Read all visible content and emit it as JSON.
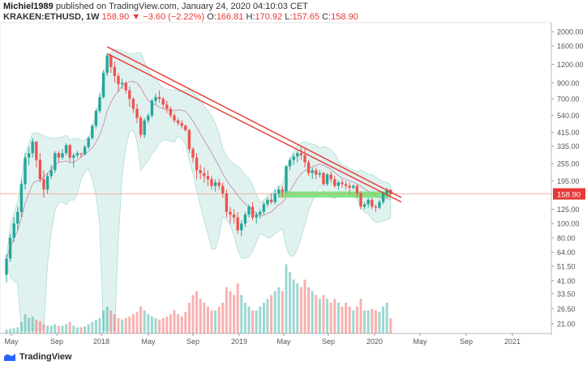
{
  "header": {
    "author": "Michiel1989",
    "published_text": "published on TradingView.com, January 24, 2020 04:10:03 CET",
    "symbol": "KRAKEN:ETHUSD, 1W",
    "last": "158.90",
    "change": "▼ −3.60 (−2.22%)",
    "o_label": "O:",
    "o_val": "166.81",
    "h_label": "H:",
    "h_val": "170.92",
    "l_label": "L:",
    "l_val": "157.65",
    "c_label": "C:",
    "c_val": "158.90"
  },
  "footer": {
    "brand": "TradingView"
  },
  "colors": {
    "up": "#26a69a",
    "down": "#ef5350",
    "band_fill": "#d9efec",
    "band_line": "#9fd3c7",
    "trend": "#e53935",
    "support": "#66e266",
    "ma": "#c48fb0"
  },
  "chart_data": {
    "type": "candlestick",
    "y_scale": "log",
    "ylim": [
      18,
      2300
    ],
    "y_ticks": [
      "2000.00",
      "1600.00",
      "1200.00",
      "900.00",
      "700.00",
      "540.00",
      "415.00",
      "335.00",
      "255.00",
      "195.00",
      "158.90",
      "125.00",
      "100.00",
      "80.00",
      "64.00",
      "51.50",
      "41.00",
      "33.50",
      "26.50",
      "21.00"
    ],
    "last_price": "158.90",
    "x_ticks": [
      "May",
      "Sep",
      "2018",
      "May",
      "Sep",
      "2019",
      "May",
      "Sep",
      "2020",
      "May",
      "Sep",
      "2021"
    ],
    "candles_ohlc": [
      [
        45,
        62,
        40,
        58
      ],
      [
        58,
        85,
        55,
        80
      ],
      [
        80,
        110,
        75,
        100
      ],
      [
        100,
        130,
        90,
        120
      ],
      [
        120,
        200,
        110,
        185
      ],
      [
        185,
        300,
        170,
        280
      ],
      [
        280,
        330,
        250,
        300
      ],
      [
        300,
        380,
        280,
        360
      ],
      [
        360,
        320,
        240,
        270
      ],
      [
        270,
        300,
        190,
        200
      ],
      [
        200,
        230,
        150,
        170
      ],
      [
        170,
        220,
        160,
        210
      ],
      [
        210,
        250,
        200,
        230
      ],
      [
        230,
        310,
        220,
        300
      ],
      [
        300,
        310,
        260,
        280
      ],
      [
        280,
        320,
        270,
        300
      ],
      [
        300,
        350,
        290,
        340
      ],
      [
        340,
        345,
        260,
        280
      ],
      [
        280,
        300,
        240,
        290
      ],
      [
        290,
        310,
        280,
        300
      ],
      [
        300,
        300,
        280,
        295
      ],
      [
        295,
        340,
        290,
        330
      ],
      [
        330,
        390,
        320,
        380
      ],
      [
        380,
        470,
        370,
        460
      ],
      [
        460,
        600,
        440,
        580
      ],
      [
        580,
        760,
        560,
        720
      ],
      [
        720,
        1100,
        700,
        1050
      ],
      [
        1050,
        1420,
        1000,
        1380
      ],
      [
        1380,
        1400,
        1050,
        1150
      ],
      [
        1150,
        1250,
        900,
        1000
      ],
      [
        1000,
        1050,
        780,
        880
      ],
      [
        880,
        960,
        820,
        900
      ],
      [
        900,
        920,
        760,
        800
      ],
      [
        800,
        850,
        620,
        700
      ],
      [
        700,
        720,
        560,
        600
      ],
      [
        600,
        650,
        480,
        520
      ],
      [
        520,
        540,
        380,
        400
      ],
      [
        400,
        520,
        380,
        500
      ],
      [
        500,
        560,
        480,
        540
      ],
      [
        540,
        700,
        520,
        680
      ],
      [
        680,
        760,
        640,
        720
      ],
      [
        720,
        800,
        660,
        700
      ],
      [
        700,
        720,
        600,
        640
      ],
      [
        640,
        680,
        560,
        600
      ],
      [
        600,
        620,
        520,
        540
      ],
      [
        540,
        560,
        480,
        500
      ],
      [
        500,
        520,
        460,
        480
      ],
      [
        480,
        500,
        440,
        460
      ],
      [
        460,
        470,
        420,
        430
      ],
      [
        430,
        440,
        300,
        320
      ],
      [
        320,
        330,
        260,
        280
      ],
      [
        280,
        300,
        200,
        230
      ],
      [
        230,
        250,
        200,
        220
      ],
      [
        220,
        240,
        190,
        210
      ],
      [
        210,
        230,
        180,
        200
      ],
      [
        200,
        210,
        170,
        180
      ],
      [
        180,
        200,
        165,
        190
      ],
      [
        190,
        200,
        170,
        180
      ],
      [
        180,
        190,
        150,
        160
      ],
      [
        160,
        170,
        110,
        120
      ],
      [
        120,
        130,
        100,
        115
      ],
      [
        115,
        125,
        100,
        110
      ],
      [
        110,
        120,
        85,
        90
      ],
      [
        90,
        105,
        82,
        100
      ],
      [
        100,
        120,
        95,
        115
      ],
      [
        115,
        135,
        110,
        130
      ],
      [
        130,
        140,
        105,
        110
      ],
      [
        110,
        120,
        100,
        115
      ],
      [
        115,
        125,
        108,
        120
      ],
      [
        120,
        140,
        115,
        135
      ],
      [
        135,
        150,
        130,
        145
      ],
      [
        145,
        160,
        135,
        140
      ],
      [
        140,
        170,
        135,
        160
      ],
      [
        160,
        180,
        150,
        170
      ],
      [
        170,
        180,
        150,
        165
      ],
      [
        165,
        250,
        160,
        245
      ],
      [
        245,
        280,
        230,
        270
      ],
      [
        270,
        300,
        250,
        285
      ],
      [
        285,
        310,
        260,
        300
      ],
      [
        300,
        330,
        270,
        290
      ],
      [
        290,
        320,
        240,
        260
      ],
      [
        260,
        270,
        210,
        220
      ],
      [
        220,
        240,
        200,
        230
      ],
      [
        230,
        240,
        200,
        215
      ],
      [
        215,
        230,
        205,
        220
      ],
      [
        220,
        225,
        180,
        185
      ],
      [
        185,
        220,
        180,
        215
      ],
      [
        215,
        225,
        190,
        200
      ],
      [
        200,
        210,
        175,
        180
      ],
      [
        180,
        195,
        170,
        190
      ],
      [
        190,
        200,
        175,
        185
      ],
      [
        185,
        195,
        170,
        180
      ],
      [
        180,
        190,
        160,
        175
      ],
      [
        175,
        185,
        170,
        180
      ],
      [
        180,
        185,
        150,
        160
      ],
      [
        160,
        165,
        125,
        130
      ],
      [
        130,
        140,
        125,
        135
      ],
      [
        135,
        150,
        128,
        145
      ],
      [
        145,
        150,
        125,
        130
      ],
      [
        130,
        135,
        120,
        128
      ],
      [
        128,
        145,
        125,
        140
      ],
      [
        140,
        165,
        135,
        160
      ],
      [
        160,
        175,
        150,
        170
      ],
      [
        170,
        170,
        155,
        159
      ]
    ],
    "volume_relative": [
      0.05,
      0.06,
      0.07,
      0.08,
      0.15,
      0.25,
      0.2,
      0.22,
      0.18,
      0.16,
      0.12,
      0.1,
      0.1,
      0.12,
      0.1,
      0.1,
      0.12,
      0.15,
      0.1,
      0.08,
      0.08,
      0.09,
      0.12,
      0.15,
      0.18,
      0.2,
      0.3,
      0.35,
      0.3,
      0.25,
      0.2,
      0.18,
      0.2,
      0.22,
      0.25,
      0.28,
      0.35,
      0.3,
      0.25,
      0.22,
      0.2,
      0.18,
      0.2,
      0.22,
      0.25,
      0.3,
      0.25,
      0.22,
      0.28,
      0.4,
      0.5,
      0.55,
      0.45,
      0.4,
      0.35,
      0.3,
      0.3,
      0.35,
      0.4,
      0.6,
      0.55,
      0.5,
      0.65,
      0.5,
      0.4,
      0.35,
      0.3,
      0.3,
      0.35,
      0.4,
      0.45,
      0.5,
      0.55,
      0.6,
      0.55,
      0.9,
      0.8,
      0.7,
      0.65,
      0.6,
      0.7,
      0.6,
      0.55,
      0.5,
      0.45,
      0.5,
      0.45,
      0.4,
      0.45,
      0.4,
      0.35,
      0.4,
      0.35,
      0.3,
      0.35,
      0.45,
      0.3,
      0.3,
      0.32,
      0.3,
      0.28,
      0.35,
      0.4,
      0.2
    ],
    "trendlines": [
      {
        "from": [
          27,
          1580
        ],
        "to": [
          95,
          150
        ]
      },
      {
        "from": [
          27,
          1420
        ],
        "to": [
          95,
          140
        ]
      }
    ],
    "support_zone": [
      150,
      165
    ]
  }
}
